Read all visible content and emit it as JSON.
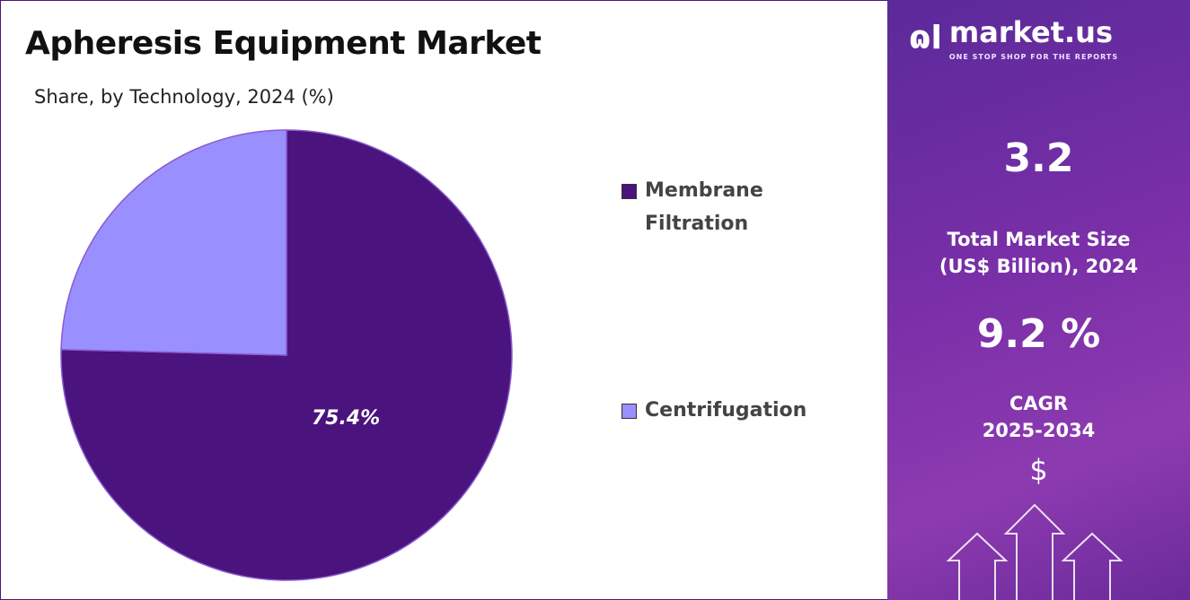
{
  "chart_data": {
    "type": "pie",
    "title": "Apheresis Equipment Market",
    "subtitle": "Share, by Technology, 2024 (%)",
    "categories": [
      "Membrane Filtration",
      "Centrifugation"
    ],
    "values": [
      75.4,
      24.6
    ],
    "data_labels": [
      "75.4%",
      ""
    ],
    "colors": [
      "#4b137d",
      "#9a8fff"
    ],
    "legend_position": "right"
  },
  "sidebar": {
    "logo_text": "market.us",
    "logo_tagline": "ONE STOP SHOP FOR THE REPORTS",
    "market_size_value": "3.2",
    "market_size_label_1": "Total Market Size",
    "market_size_label_2": "(US$ Billion), 2024",
    "cagr_value": "9.2 %",
    "cagr_label_1": "CAGR",
    "cagr_label_2": "2025-2034",
    "currency_symbol": "$"
  }
}
